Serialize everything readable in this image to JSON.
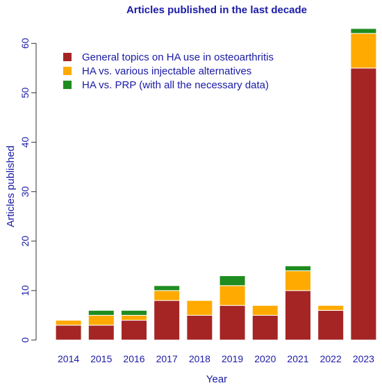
{
  "chart_data": {
    "type": "bar",
    "stacked": true,
    "title": "Articles published in the last decade",
    "xlabel": "Year",
    "ylabel": "Articles published",
    "categories": [
      "2014",
      "2015",
      "2016",
      "2017",
      "2018",
      "2019",
      "2020",
      "2021",
      "2022",
      "2023"
    ],
    "ylim": [
      0,
      63
    ],
    "yticks": [
      0,
      10,
      20,
      30,
      40,
      50,
      60
    ],
    "grid": false,
    "legend_position": "top-left",
    "series": [
      {
        "name": "General topics on HA use in osteoarthritis",
        "color": "#a52525",
        "values": [
          3,
          3,
          4,
          8,
          5,
          7,
          5,
          10,
          6,
          55
        ]
      },
      {
        "name": "HA vs. various injectable alternatives",
        "color": "#ffaa00",
        "values": [
          1,
          2,
          1,
          2,
          3,
          4,
          2,
          4,
          1,
          7
        ]
      },
      {
        "name": "HA vs. PRP (with all the necessary data)",
        "color": "#1f8c1f",
        "values": [
          0,
          1,
          1,
          1,
          0,
          2,
          0,
          1,
          0,
          1
        ]
      }
    ]
  }
}
